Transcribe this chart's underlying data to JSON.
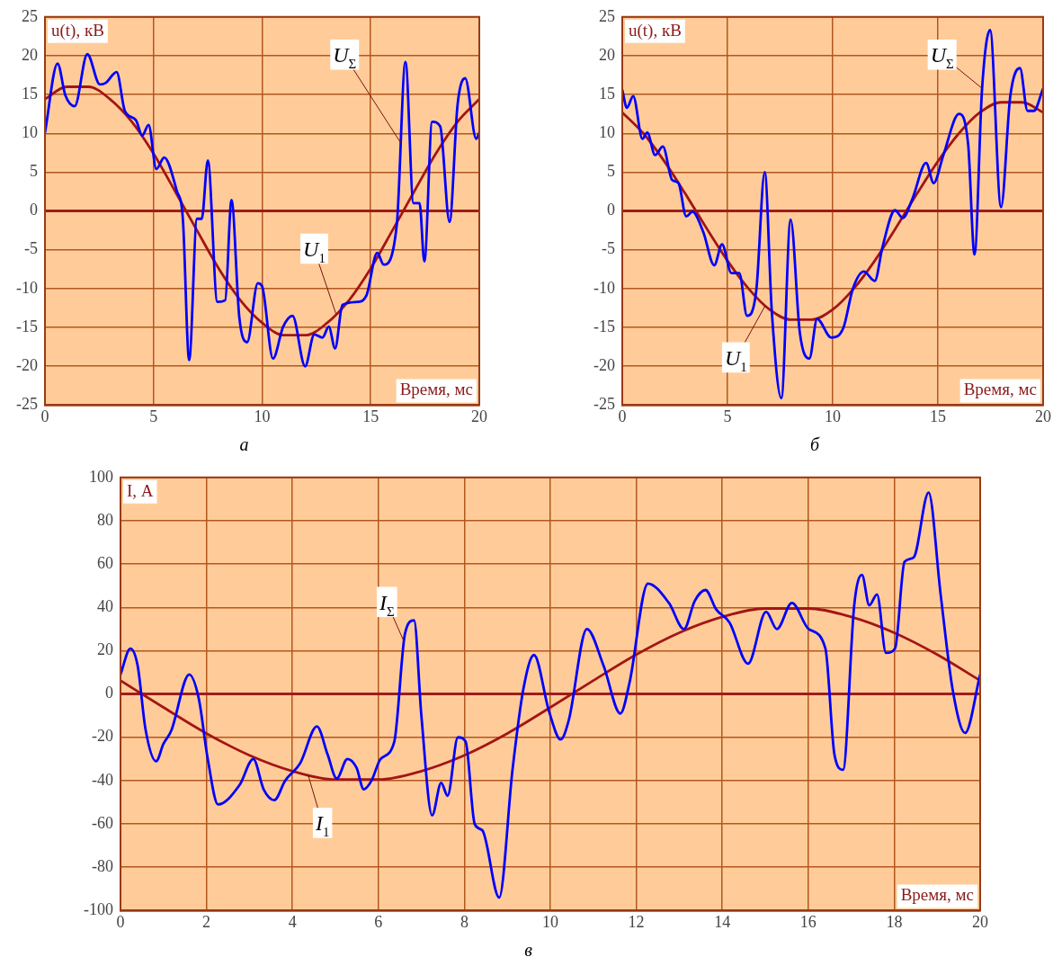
{
  "chart_data": [
    {
      "type": "line",
      "title": "а",
      "xlabel": "Время, мс",
      "ylabel": "u(t), кВ",
      "xlim": [
        0,
        20
      ],
      "xticks": [
        0,
        5,
        10,
        15,
        20
      ],
      "ylim": [
        -25,
        25
      ],
      "yticks": [
        -25,
        -20,
        -15,
        -10,
        -5,
        0,
        5,
        10,
        15,
        20,
        25
      ],
      "grid": true,
      "marker": "none",
      "ref_lines": [
        {
          "axis": "y",
          "value": 0,
          "color": "#a01c1c"
        }
      ],
      "series": [
        {
          "name": "U$_{Σ}$",
          "color": "#0000ff",
          "x": [
            0,
            0.58,
            0.94,
            1.37,
            1.95,
            2.53,
            2.8,
            3.3,
            3.68,
            4.19,
            4.48,
            4.77,
            5.13,
            5.49,
            6.07,
            6.35,
            6.64,
            7.0,
            7.22,
            7.5,
            7.94,
            8.3,
            8.59,
            8.95,
            9.31,
            9.8,
            10.0,
            10.5,
            10.97,
            11.4,
            11.98,
            12.4,
            12.78,
            13.07,
            13.36,
            13.7,
            14.4,
            14.8,
            15.3,
            15.6,
            16.2,
            16.6,
            16.97,
            17.25,
            17.47,
            17.83,
            18.2,
            18.63,
            19.0,
            19.35,
            19.86,
            20
          ],
          "values": [
            10.1,
            19,
            14.9,
            13.5,
            20.2,
            16.3,
            16.5,
            17.9,
            12.9,
            11.7,
            9.7,
            11.1,
            5.4,
            6.9,
            2.6,
            -1,
            -19.2,
            -1,
            -1,
            6.5,
            -11.7,
            -11.5,
            1.4,
            -13.7,
            -16.9,
            -9.3,
            -9.7,
            -19,
            -14.9,
            -13.5,
            -20,
            -15.9,
            -16.3,
            -14.9,
            -17.7,
            -12.1,
            -11.7,
            -10.9,
            -5.4,
            -6.9,
            -1.8,
            19.2,
            1,
            1,
            -6.5,
            11.5,
            10.9,
            -1.4,
            13.7,
            17.1,
            9.3,
            10.1
          ]
        },
        {
          "name": "U$_{1}$",
          "color": "#a31515",
          "x": [
            0,
            1,
            2,
            3,
            4,
            5,
            6,
            7,
            8,
            9,
            10,
            11,
            12,
            13,
            14,
            15,
            16,
            17,
            18,
            19,
            20
          ],
          "values": [
            14.4,
            16.0,
            16.0,
            14.4,
            11.5,
            7.4,
            2.5,
            -2.5,
            -7.4,
            -11.5,
            -14.4,
            -16.0,
            -16.0,
            -14.4,
            -11.5,
            -7.4,
            -2.5,
            2.5,
            7.4,
            11.5,
            14.4
          ]
        }
      ]
    },
    {
      "type": "line",
      "title": "б",
      "xlabel": "Время, мс",
      "ylabel": "u(t), кВ",
      "xlim": [
        0,
        20
      ],
      "xticks": [
        0,
        5,
        10,
        15,
        20
      ],
      "ylim": [
        -25,
        25
      ],
      "yticks": [
        -25,
        -20,
        -15,
        -10,
        -5,
        0,
        5,
        10,
        15,
        20,
        25
      ],
      "grid": true,
      "marker": "none",
      "ref_lines": [
        {
          "axis": "y",
          "value": 0,
          "color": "#a01c1c"
        }
      ],
      "series": [
        {
          "name": "U$_{Σ}$",
          "color": "#0000ff",
          "x": [
            0,
            0.22,
            0.52,
            0.96,
            1.19,
            1.56,
            1.93,
            2.37,
            2.67,
            3.04,
            3.33,
            3.85,
            4.37,
            4.74,
            5.19,
            5.56,
            5.93,
            6.37,
            6.77,
            7.11,
            7.56,
            8.0,
            8.44,
            8.89,
            9.26,
            9.93,
            10.5,
            10.96,
            11.48,
            12.0,
            12.37,
            12.96,
            13.33,
            13.78,
            14.44,
            14.8,
            15.26,
            16.0,
            16.44,
            16.74,
            17.1,
            17.48,
            18.0,
            18.44,
            18.9,
            19.26,
            19.56,
            20
          ],
          "values": [
            15.6,
            13.3,
            14.8,
            9.3,
            10.1,
            7.2,
            8.3,
            4,
            3.6,
            -0.7,
            -0.1,
            -2.7,
            -7,
            -4.3,
            -8,
            -8,
            -13.5,
            -10.2,
            5,
            -13.1,
            -24.1,
            -1.1,
            -15.7,
            -19,
            -13.9,
            -16.3,
            -15.1,
            -10,
            -7.8,
            -9,
            -4.6,
            0.1,
            -0.9,
            1.5,
            6.2,
            3.6,
            7.2,
            12.5,
            8.5,
            -5.6,
            15.8,
            23.3,
            0.5,
            14.8,
            18.4,
            12.9,
            12.9,
            15.8
          ]
        },
        {
          "name": "U$_{1}$",
          "color": "#a31515",
          "x": [
            0,
            1,
            2,
            3,
            4,
            5,
            6,
            7,
            8,
            9,
            10,
            11,
            12,
            13,
            14,
            15,
            16,
            17,
            18,
            19,
            20
          ],
          "values": [
            12.7,
            10.0,
            6.4,
            2.2,
            -2.2,
            -6.4,
            -10.0,
            -12.7,
            -14.0,
            -14.0,
            -12.7,
            -10.0,
            -6.4,
            -2.2,
            2.2,
            6.4,
            10.0,
            12.7,
            14.0,
            14.0,
            12.7
          ]
        }
      ]
    },
    {
      "type": "line",
      "title": "в",
      "xlabel": "Время, мс",
      "ylabel": "I, А",
      "xlim": [
        0,
        20
      ],
      "xticks": [
        0,
        2,
        4,
        6,
        8,
        10,
        12,
        14,
        16,
        18,
        20
      ],
      "ylim": [
        -100,
        100
      ],
      "yticks": [
        -100,
        -80,
        -60,
        -40,
        -20,
        0,
        20,
        40,
        60,
        80,
        100
      ],
      "grid": true,
      "marker": "none",
      "ref_lines": [
        {
          "axis": "y",
          "value": 0,
          "color": "#a01c1c"
        }
      ],
      "series": [
        {
          "name": "I$_{Σ}$",
          "color": "#0000ff",
          "x": [
            0,
            0.23,
            0.4,
            0.58,
            0.83,
            1.0,
            1.18,
            1.6,
            1.82,
            2.03,
            2.27,
            2.77,
            3.09,
            3.33,
            3.58,
            3.83,
            4.18,
            4.57,
            4.82,
            5.03,
            5.28,
            5.49,
            5.66,
            5.84,
            6.05,
            6.37,
            6.62,
            6.83,
            7.0,
            7.25,
            7.46,
            7.61,
            7.85,
            8.03,
            8.24,
            8.42,
            8.81,
            9.12,
            9.37,
            9.62,
            9.97,
            10.24,
            10.43,
            10.85,
            11.24,
            11.63,
            11.84,
            12.27,
            12.76,
            13.11,
            13.36,
            13.61,
            13.86,
            14.17,
            14.6,
            15.02,
            15.27,
            15.62,
            16.01,
            16.4,
            16.61,
            16.81,
            17.07,
            17.25,
            17.42,
            17.6,
            17.81,
            18.02,
            18.24,
            18.45,
            18.8,
            19.08,
            19.36,
            19.65,
            20
          ],
          "values": [
            9,
            21,
            13,
            -16,
            -31,
            -23,
            -17,
            9,
            -2,
            -30,
            -51,
            -42,
            -30,
            -44,
            -49,
            -40,
            -32,
            -15,
            -28,
            -39,
            -30,
            -34,
            -44,
            -40,
            -30,
            -22,
            28,
            34,
            -10,
            -56,
            -41,
            -47,
            -20,
            -22,
            -60,
            -63,
            -94,
            -35,
            2,
            18,
            -8,
            -21,
            -12,
            30,
            13,
            -9,
            5,
            51,
            42,
            30,
            43,
            48,
            39,
            33,
            14,
            38,
            30,
            42,
            30,
            21,
            -28,
            -35,
            41,
            55,
            41,
            46,
            19,
            21,
            61,
            63,
            93,
            46,
            2,
            -18,
            9
          ]
        },
        {
          "name": "I$_{1}$",
          "color": "#a31515",
          "x": [
            0,
            1,
            2,
            3,
            4,
            5,
            6,
            7,
            8,
            9,
            10,
            11,
            12,
            13,
            14,
            15,
            16,
            17,
            18,
            19,
            20
          ],
          "values": [
            6.2,
            -6.2,
            -18.2,
            -28.3,
            -35.6,
            -39.5,
            -39.5,
            -35.6,
            -28.3,
            -18.2,
            -6.2,
            6.2,
            18.2,
            28.3,
            35.6,
            39.5,
            39.5,
            35.6,
            28.3,
            18.2,
            6.2
          ]
        }
      ]
    }
  ]
}
